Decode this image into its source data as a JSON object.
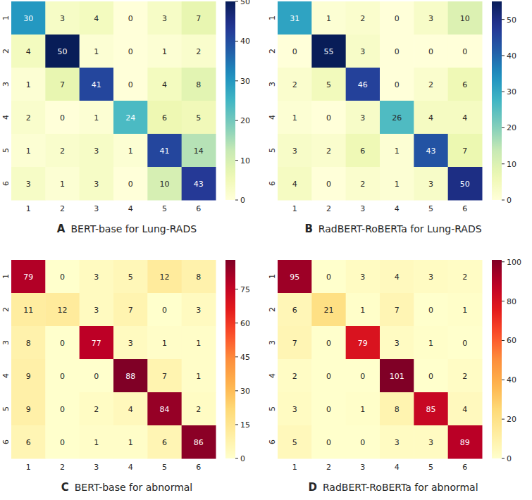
{
  "chart_data": [
    {
      "type": "heatmap",
      "panel": "A",
      "title": "BERT-base for Lung-RADS",
      "color": "YlGnBu",
      "x": [
        1,
        2,
        3,
        4,
        5,
        6
      ],
      "y": [
        1,
        2,
        3,
        4,
        5,
        6
      ],
      "cells": [
        [
          30,
          3,
          4,
          0,
          3,
          7
        ],
        [
          4,
          50,
          1,
          0,
          1,
          2
        ],
        [
          1,
          7,
          41,
          0,
          4,
          8
        ],
        [
          2,
          0,
          1,
          24,
          6,
          5
        ],
        [
          1,
          2,
          3,
          1,
          41,
          14
        ],
        [
          3,
          1,
          3,
          0,
          10,
          43
        ]
      ],
      "data_labels": true,
      "colorbar": {
        "range": [
          0,
          50
        ],
        "ticks": [
          0,
          10,
          20,
          30,
          40,
          50
        ]
      }
    },
    {
      "type": "heatmap",
      "panel": "B",
      "title": "RadBERT-RoBERTa for Lung-RADS",
      "color": "YlGnBu",
      "x": [
        1,
        2,
        3,
        4,
        5,
        6
      ],
      "y": [
        1,
        2,
        3,
        4,
        5,
        6
      ],
      "cells": [
        [
          31,
          1,
          2,
          0,
          3,
          10
        ],
        [
          0,
          55,
          3,
          0,
          0,
          0
        ],
        [
          2,
          5,
          46,
          0,
          2,
          6
        ],
        [
          1,
          0,
          3,
          26,
          4,
          4
        ],
        [
          3,
          2,
          6,
          1,
          43,
          7
        ],
        [
          4,
          0,
          2,
          1,
          3,
          50
        ]
      ],
      "data_labels": true,
      "colorbar": {
        "range": [
          0,
          55
        ],
        "ticks": [
          0,
          10,
          20,
          30,
          40,
          50
        ]
      }
    },
    {
      "type": "heatmap",
      "panel": "C",
      "title": "BERT-base for abnormal",
      "color": "YlOrRd",
      "x": [
        1,
        2,
        3,
        4,
        5,
        6
      ],
      "y": [
        1,
        2,
        3,
        4,
        5,
        6
      ],
      "cells": [
        [
          79,
          0,
          3,
          5,
          12,
          8
        ],
        [
          11,
          12,
          3,
          7,
          0,
          3
        ],
        [
          8,
          0,
          77,
          3,
          1,
          1
        ],
        [
          9,
          0,
          0,
          88,
          7,
          1
        ],
        [
          9,
          0,
          2,
          4,
          84,
          2
        ],
        [
          6,
          0,
          1,
          1,
          6,
          86
        ]
      ],
      "data_labels": true,
      "colorbar": {
        "range": [
          0,
          88
        ],
        "ticks": [
          0,
          15,
          30,
          45,
          60,
          75
        ]
      }
    },
    {
      "type": "heatmap",
      "panel": "D",
      "title": "RadBERT-RoBERTa for abnormal",
      "color": "YlOrRd",
      "x": [
        1,
        2,
        3,
        4,
        5,
        6
      ],
      "y": [
        1,
        2,
        3,
        4,
        5,
        6
      ],
      "cells": [
        [
          95,
          0,
          3,
          4,
          3,
          2
        ],
        [
          6,
          21,
          1,
          7,
          0,
          1
        ],
        [
          7,
          0,
          79,
          3,
          1,
          0
        ],
        [
          2,
          0,
          0,
          101,
          0,
          2
        ],
        [
          3,
          0,
          1,
          8,
          85,
          4
        ],
        [
          5,
          0,
          0,
          3,
          3,
          89
        ]
      ],
      "data_labels": true,
      "colorbar": {
        "range": [
          0,
          101
        ],
        "ticks": [
          0,
          20,
          40,
          60,
          80,
          100
        ]
      }
    }
  ]
}
